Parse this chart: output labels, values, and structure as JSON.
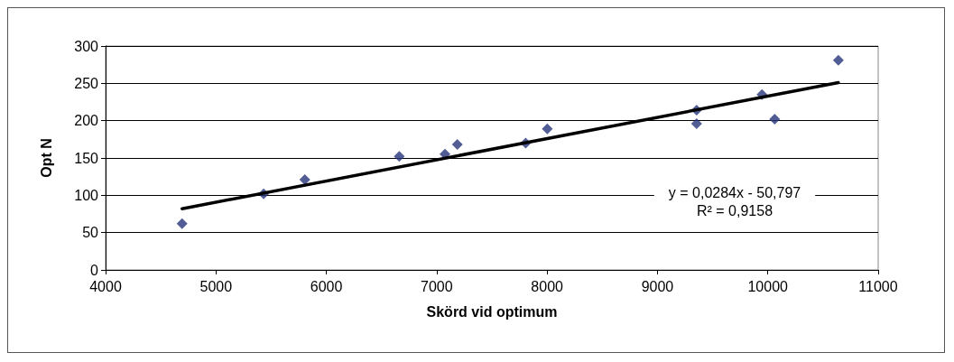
{
  "chart_data": {
    "type": "scatter",
    "xlabel": "Skörd vid optimum",
    "ylabel": "Opt N",
    "xlim": [
      4000,
      11000
    ],
    "xticks": [
      4000,
      5000,
      6000,
      7000,
      8000,
      9000,
      10000,
      11000
    ],
    "ylim": [
      0,
      300
    ],
    "yticks": [
      0,
      50,
      100,
      150,
      200,
      250,
      300
    ],
    "grid": "y",
    "series": [
      {
        "color": "#27357a",
        "marker": "diamond",
        "x": [
          4693,
          5432,
          5805,
          6661,
          7075,
          7187,
          7806,
          8002,
          9355,
          9355,
          9947,
          10062,
          10639
        ],
        "values": [
          62,
          102,
          121,
          152,
          155,
          168,
          170,
          189,
          214,
          196,
          235,
          202,
          281
        ]
      },
      {
        "type": "line",
        "color": "#000000",
        "marker": "none",
        "line_style": "solid",
        "x": [
          4693,
          10639
        ],
        "values": [
          82,
          251
        ]
      }
    ],
    "annotations": [
      "y = 0,0284x - 50,797",
      "R² = 0,9158"
    ]
  }
}
